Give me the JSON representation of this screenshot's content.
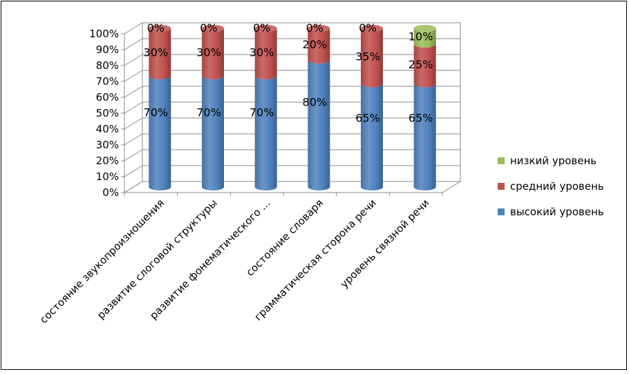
{
  "chart_data": {
    "type": "bar",
    "stacked": true,
    "orientation": "vertical",
    "style": "3d-cylinder",
    "categories": [
      "состояние звукопроизношения",
      "развитие слоговой структуры",
      "развитие фонематического ...",
      "состояние словаря",
      "грамматическая сторона речи",
      "уровень связной речи"
    ],
    "series": [
      {
        "name": "высокий уровень",
        "color": "#4F81BD",
        "values": [
          70,
          70,
          70,
          80,
          65,
          65
        ],
        "labels": [
          "70%",
          "70%",
          "70%",
          "80%",
          "65%",
          "65%"
        ]
      },
      {
        "name": "средний уровень",
        "color": "#C0504D",
        "values": [
          30,
          30,
          30,
          20,
          35,
          25
        ],
        "labels": [
          "30%",
          "30%",
          "30%",
          "20%",
          "35%",
          "25%"
        ]
      },
      {
        "name": "низкий уровень",
        "color": "#9BBB59",
        "values": [
          0,
          0,
          0,
          0,
          0,
          10
        ],
        "labels": [
          "0%",
          "0%",
          "0%",
          "0%",
          "0%",
          "10%"
        ]
      }
    ],
    "ylim": [
      0,
      100
    ],
    "yticks": [
      "0%",
      "10%",
      "20%",
      "30%",
      "40%",
      "50%",
      "60%",
      "70%",
      "80%",
      "90%",
      "100%"
    ],
    "grid": true,
    "legend_position": "right",
    "legend_order": [
      "низкий уровень",
      "средний уровень",
      "высокий уровень"
    ],
    "title": "",
    "xlabel": "",
    "ylabel": ""
  }
}
